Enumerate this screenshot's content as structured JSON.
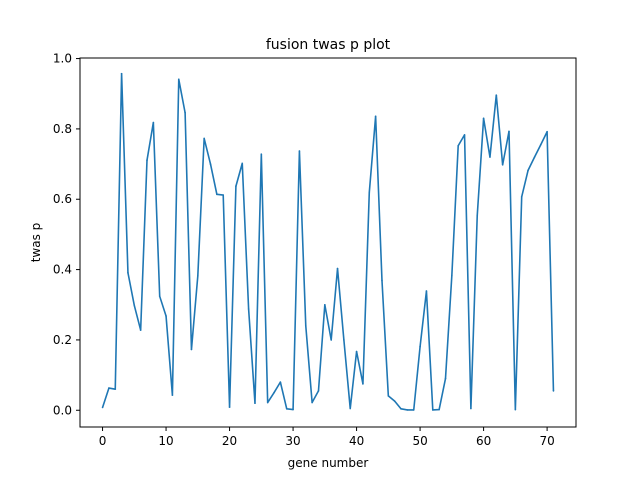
{
  "chart_data": {
    "type": "line",
    "title": "fusion twas p plot",
    "xlabel": "gene number",
    "ylabel": "twas p",
    "xlim": [
      -3.55,
      74.55
    ],
    "ylim": [
      -0.0476,
      1.0016
    ],
    "grid": false,
    "x_ticks": [
      0,
      10,
      20,
      30,
      40,
      50,
      60,
      70
    ],
    "x_tick_labels": [
      "0",
      "10",
      "20",
      "30",
      "40",
      "50",
      "60",
      "70"
    ],
    "y_ticks": [
      0.0,
      0.2,
      0.4,
      0.6,
      0.8,
      1.0
    ],
    "y_tick_labels": [
      "0.0",
      "0.2",
      "0.4",
      "0.6",
      "0.8",
      "1.0"
    ],
    "series": [
      {
        "color": "#1f77b4",
        "x": [
          0,
          1,
          2,
          3,
          4,
          5,
          6,
          7,
          8,
          9,
          10,
          11,
          12,
          13,
          14,
          15,
          16,
          17,
          18,
          19,
          20,
          21,
          22,
          23,
          24,
          25,
          26,
          27,
          28,
          29,
          30,
          31,
          32,
          33,
          34,
          35,
          36,
          37,
          38,
          39,
          40,
          41,
          42,
          43,
          44,
          45,
          46,
          47,
          48,
          49,
          50,
          51,
          52,
          53,
          54,
          55,
          56,
          57,
          58,
          59,
          60,
          61,
          62,
          63,
          64,
          65,
          66,
          67,
          68,
          69,
          70,
          71
        ],
        "values": [
          0.008,
          0.063,
          0.06,
          0.957,
          0.391,
          0.298,
          0.228,
          0.711,
          0.818,
          0.324,
          0.268,
          0.043,
          0.941,
          0.846,
          0.173,
          0.382,
          0.773,
          0.7,
          0.614,
          0.612,
          0.009,
          0.637,
          0.702,
          0.288,
          0.02,
          0.728,
          0.022,
          0.05,
          0.08,
          0.004,
          0.002,
          0.737,
          0.24,
          0.022,
          0.055,
          0.3,
          0.2,
          0.403,
          0.2,
          0.005,
          0.167,
          0.075,
          0.619,
          0.836,
          0.369,
          0.041,
          0.026,
          0.004,
          0.001,
          0.001,
          0.181,
          0.339,
          0.001,
          0.002,
          0.09,
          0.383,
          0.752,
          0.783,
          0.005,
          0.554,
          0.83,
          0.72,
          0.896,
          0.698,
          0.793,
          0.002,
          0.607,
          0.682,
          0.719,
          0.755,
          0.792,
          0.055
        ]
      }
    ]
  }
}
